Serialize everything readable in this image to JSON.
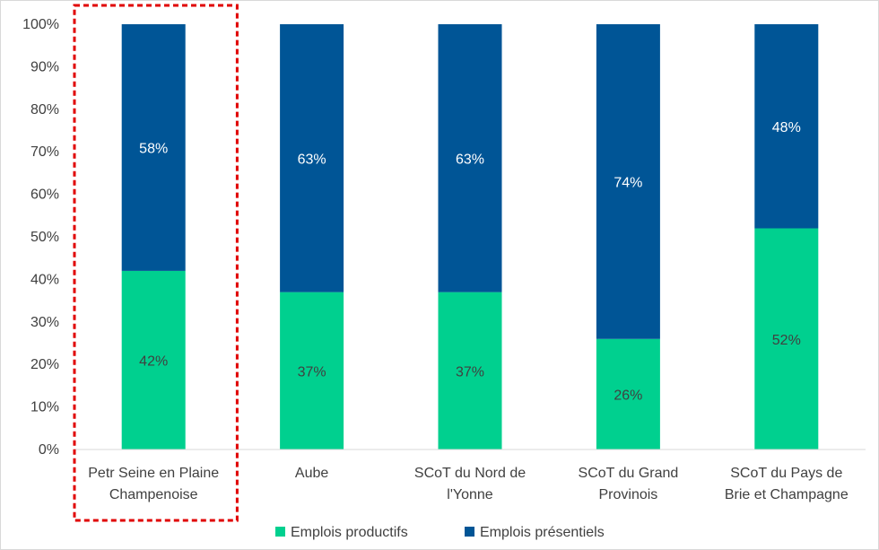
{
  "chart_data": {
    "type": "bar",
    "stacked": true,
    "percent": true,
    "categories": [
      [
        "Petr Seine en Plaine",
        "Champenoise"
      ],
      [
        "Aube"
      ],
      [
        "SCoT du Nord de",
        "l'Yonne"
      ],
      [
        "SCoT du Grand",
        "Provinois"
      ],
      [
        "SCoT du Pays de",
        "Brie et Champagne"
      ]
    ],
    "series": [
      {
        "name": "Emplois productifs",
        "color": "#00d08f",
        "values": [
          42,
          37,
          37,
          26,
          52
        ],
        "labels": [
          "42%",
          "37%",
          "37%",
          "26%",
          "52%"
        ]
      },
      {
        "name": "Emplois présentiels",
        "color": "#005596",
        "values": [
          58,
          63,
          63,
          74,
          48
        ],
        "labels": [
          "58%",
          "63%",
          "63%",
          "74%",
          "48%"
        ]
      }
    ],
    "y_ticks": [
      "0%",
      "10%",
      "20%",
      "30%",
      "40%",
      "50%",
      "60%",
      "70%",
      "80%",
      "90%",
      "100%"
    ],
    "ylim": [
      0,
      100
    ],
    "grid": false,
    "legend": "bottom",
    "highlight": {
      "category_index": 0,
      "color": "#e00000"
    }
  }
}
